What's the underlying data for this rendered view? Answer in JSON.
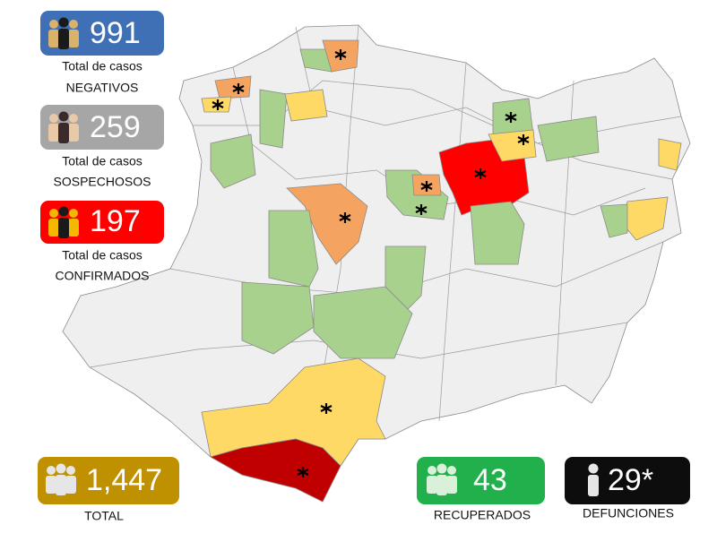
{
  "stats": [
    {
      "value": "991",
      "line1": "Total de casos",
      "line2": "NEGATIVOS"
    },
    {
      "value": "259",
      "line1": "Total de casos",
      "line2": "SOSPECHOSOS"
    },
    {
      "value": "197",
      "line1": "Total de casos",
      "line2": "CONFIRMADOS"
    }
  ],
  "totals": [
    {
      "value": "1,447",
      "label": "TOTAL"
    },
    {
      "value": "43",
      "label": "RECUPERADOS"
    },
    {
      "value": "29*",
      "label": "DEFUNCIONES"
    }
  ]
}
